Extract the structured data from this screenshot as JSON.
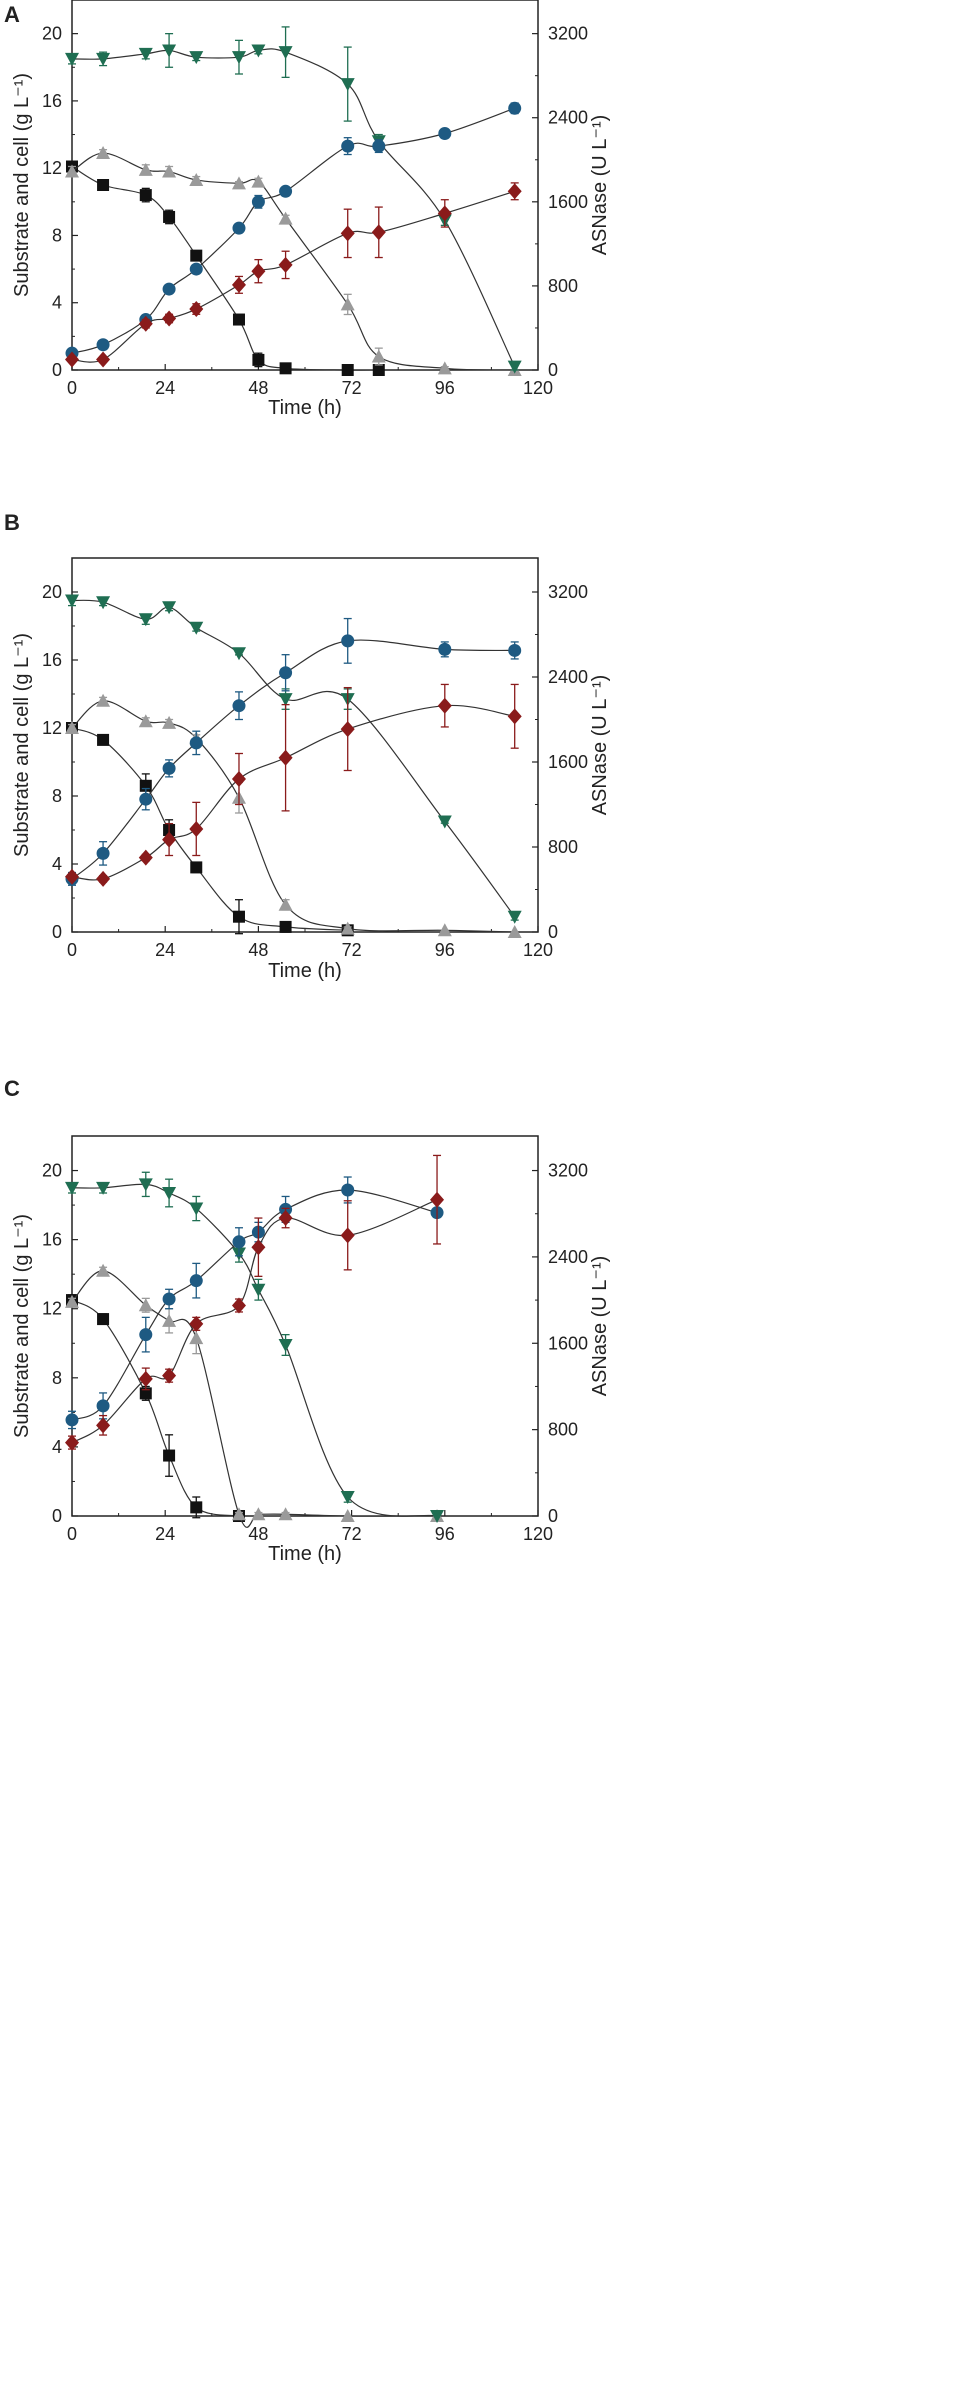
{
  "colors": {
    "black": "#111111",
    "gray": "#9a9a9a",
    "green": "#1f6e52",
    "blue": "#1e5a82",
    "red": "#8a1b1b",
    "axis": "#222222"
  },
  "chart_data": [
    {
      "type": "line",
      "panel_label": "A",
      "xlabel": "Time (h)",
      "ylabel": "Substrate and cell (g L⁻¹)",
      "y2label": "ASNase (U L⁻¹)",
      "xlim": [
        0,
        120
      ],
      "ylim": [
        0,
        22
      ],
      "y2lim": [
        0,
        3520
      ],
      "xticks": [
        "0",
        "24",
        "48",
        "72",
        "96",
        "120"
      ],
      "yticks": [
        "0",
        "4",
        "8",
        "12",
        "16",
        "20"
      ],
      "y2ticks": [
        "0",
        "800",
        "1600",
        "2400",
        "3200"
      ],
      "series": [
        {
          "name": "black-square",
          "marker": "square",
          "color": "#111111",
          "axis": "left",
          "x": [
            0,
            8,
            19,
            25,
            32,
            43,
            48,
            55,
            71,
            79
          ],
          "y": [
            12.1,
            11.0,
            10.4,
            9.1,
            6.8,
            3.0,
            0.6,
            0.1,
            0.0,
            0.0
          ],
          "err": [
            0.3,
            0.3,
            0.4,
            0.4,
            0.2,
            0.3,
            0.4,
            0.1,
            0.0,
            0.0
          ]
        },
        {
          "name": "gray-triangle",
          "marker": "triangle-up",
          "color": "#9a9a9a",
          "axis": "left",
          "x": [
            0,
            8,
            19,
            25,
            32,
            43,
            48,
            55,
            71,
            79,
            96,
            114
          ],
          "y": [
            11.8,
            12.9,
            11.9,
            11.8,
            11.3,
            11.1,
            11.2,
            9.0,
            3.9,
            0.8,
            0.1,
            0.0
          ],
          "err": [
            0.3,
            0.2,
            0.3,
            0.3,
            0.2,
            0.1,
            0.2,
            0.2,
            0.6,
            0.5,
            0.1,
            0.0
          ]
        },
        {
          "name": "green-triangle",
          "marker": "triangle-down",
          "color": "#1f6e52",
          "axis": "left",
          "x": [
            0,
            8,
            19,
            25,
            32,
            43,
            48,
            55,
            71,
            79,
            96,
            114
          ],
          "y": [
            18.5,
            18.5,
            18.8,
            19.0,
            18.6,
            18.6,
            19.0,
            18.9,
            17.0,
            13.6,
            8.9,
            0.2
          ],
          "err": [
            0.3,
            0.4,
            0.3,
            1.0,
            0.2,
            1.0,
            0.2,
            1.5,
            2.2,
            0.4,
            0.3,
            0.2
          ]
        },
        {
          "name": "blue-circle",
          "marker": "circle",
          "color": "#1e5a82",
          "axis": "right",
          "x": [
            0,
            8,
            19,
            25,
            32,
            43,
            48,
            55,
            71,
            79,
            96,
            114
          ],
          "y": [
            160,
            240,
            480,
            770,
            960,
            1350,
            1600,
            1700,
            2130,
            2130,
            2250,
            2490
          ],
          "err": [
            30,
            30,
            30,
            30,
            30,
            40,
            60,
            30,
            80,
            60,
            30,
            50
          ]
        },
        {
          "name": "red-diamond",
          "marker": "diamond",
          "color": "#8a1b1b",
          "axis": "right",
          "x": [
            0,
            8,
            19,
            25,
            32,
            43,
            48,
            55,
            71,
            79,
            96,
            114
          ],
          "y": [
            100,
            100,
            440,
            490,
            580,
            810,
            940,
            1000,
            1300,
            1310,
            1490,
            1700
          ],
          "err": [
            20,
            20,
            40,
            40,
            50,
            80,
            110,
            130,
            230,
            240,
            130,
            80
          ]
        }
      ]
    },
    {
      "type": "line",
      "panel_label": "B",
      "xlabel": "Time (h)",
      "ylabel": "Substrate and cell (g L⁻¹)",
      "y2label": "ASNase (U L⁻¹)",
      "xlim": [
        0,
        120
      ],
      "ylim": [
        0,
        22
      ],
      "y2lim": [
        0,
        3520
      ],
      "xticks": [
        "0",
        "24",
        "48",
        "72",
        "96",
        "120"
      ],
      "yticks": [
        "0",
        "4",
        "8",
        "12",
        "16",
        "20"
      ],
      "y2ticks": [
        "0",
        "800",
        "1600",
        "2400",
        "3200"
      ],
      "series": [
        {
          "name": "black-square",
          "marker": "square",
          "color": "#111111",
          "axis": "left",
          "x": [
            0,
            8,
            19,
            25,
            32,
            43,
            55,
            71
          ],
          "y": [
            12.0,
            11.3,
            8.6,
            6.0,
            3.8,
            0.9,
            0.3,
            0.1
          ],
          "err": [
            0.2,
            0.2,
            0.7,
            0.6,
            0.3,
            1.0,
            0.3,
            0.1
          ]
        },
        {
          "name": "gray-triangle",
          "marker": "triangle-up",
          "color": "#9a9a9a",
          "axis": "left",
          "x": [
            0,
            8,
            19,
            25,
            32,
            43,
            55,
            71,
            96,
            114
          ],
          "y": [
            12.0,
            13.6,
            12.4,
            12.3,
            11.4,
            7.9,
            1.6,
            0.2,
            0.1,
            0.0
          ],
          "err": [
            0.2,
            0.2,
            0.2,
            0.2,
            0.2,
            0.9,
            0.3,
            0.1,
            0.0,
            0.0
          ]
        },
        {
          "name": "green-triangle",
          "marker": "triangle-down",
          "color": "#1f6e52",
          "axis": "left",
          "x": [
            0,
            8,
            19,
            25,
            32,
            43,
            55,
            71,
            96,
            114
          ],
          "y": [
            19.5,
            19.4,
            18.4,
            19.1,
            17.9,
            16.4,
            13.7,
            13.7,
            6.5,
            0.9
          ],
          "err": [
            0.3,
            0.2,
            0.3,
            0.2,
            0.2,
            0.1,
            0.6,
            0.6,
            0.1,
            0.2
          ]
        },
        {
          "name": "blue-circle",
          "marker": "circle",
          "color": "#1e5a82",
          "axis": "right",
          "x": [
            0,
            8,
            19,
            25,
            32,
            43,
            55,
            71,
            96,
            114
          ],
          "y": [
            500,
            740,
            1250,
            1540,
            1780,
            2130,
            2440,
            2740,
            2660,
            2650
          ],
          "err": [
            60,
            110,
            100,
            80,
            110,
            130,
            170,
            210,
            70,
            80
          ]
        },
        {
          "name": "red-diamond",
          "marker": "diamond",
          "color": "#8a1b1b",
          "axis": "right",
          "x": [
            0,
            8,
            19,
            25,
            32,
            43,
            55,
            71,
            96,
            114
          ],
          "y": [
            520,
            500,
            700,
            870,
            970,
            1440,
            1640,
            1910,
            2130,
            2030
          ],
          "err": [
            30,
            30,
            30,
            150,
            250,
            240,
            500,
            390,
            200,
            300
          ]
        }
      ]
    },
    {
      "type": "line",
      "panel_label": "C",
      "xlabel": "Time (h)",
      "ylabel": "Substrate and cell (g L⁻¹)",
      "y2label": "ASNase (U L⁻¹)",
      "xlim": [
        0,
        120
      ],
      "ylim": [
        0,
        22
      ],
      "y2lim": [
        0,
        3520
      ],
      "xticks": [
        "0",
        "24",
        "48",
        "72",
        "96",
        "120"
      ],
      "yticks": [
        "0",
        "4",
        "8",
        "12",
        "16",
        "20"
      ],
      "y2ticks": [
        "0",
        "800",
        "1600",
        "2400",
        "3200"
      ],
      "series": [
        {
          "name": "black-square",
          "marker": "square",
          "color": "#111111",
          "axis": "left",
          "x": [
            0,
            8,
            19,
            25,
            32,
            43
          ],
          "y": [
            12.5,
            11.4,
            7.1,
            3.5,
            0.5,
            0.0
          ],
          "err": [
            0.3,
            0.3,
            0.4,
            1.2,
            0.6,
            0.0
          ]
        },
        {
          "name": "gray-triangle",
          "marker": "triangle-up",
          "color": "#9a9a9a",
          "axis": "left",
          "x": [
            0,
            8,
            19,
            25,
            32,
            43,
            48,
            55,
            71,
            94
          ],
          "y": [
            12.4,
            14.2,
            12.2,
            11.3,
            10.3,
            0.1,
            0.1,
            0.1,
            0.0,
            0.0
          ],
          "err": [
            0.2,
            0.2,
            0.4,
            0.7,
            0.9,
            0.1,
            0.1,
            0.1,
            0.0,
            0.0
          ]
        },
        {
          "name": "green-triangle",
          "marker": "triangle-down",
          "color": "#1f6e52",
          "axis": "left",
          "x": [
            0,
            8,
            19,
            25,
            32,
            43,
            48,
            55,
            71,
            94
          ],
          "y": [
            19.0,
            19.0,
            19.2,
            18.7,
            17.8,
            15.2,
            13.1,
            9.9,
            1.1,
            0.0
          ],
          "err": [
            0.3,
            0.3,
            0.7,
            0.8,
            0.7,
            0.5,
            0.6,
            0.6,
            0.3,
            0.0
          ]
        },
        {
          "name": "blue-circle",
          "marker": "circle",
          "color": "#1e5a82",
          "axis": "right",
          "x": [
            0,
            8,
            19,
            25,
            32,
            43,
            48,
            55,
            71,
            94
          ],
          "y": [
            890,
            1020,
            1680,
            2010,
            2180,
            2540,
            2630,
            2840,
            3020,
            2810
          ],
          "err": [
            80,
            120,
            160,
            90,
            160,
            130,
            90,
            120,
            120,
            40
          ]
        },
        {
          "name": "red-diamond",
          "marker": "diamond",
          "color": "#8a1b1b",
          "axis": "right",
          "x": [
            0,
            8,
            19,
            25,
            32,
            43,
            48,
            55,
            71,
            94
          ],
          "y": [
            680,
            840,
            1270,
            1300,
            1780,
            1950,
            2490,
            2760,
            2600,
            2930
          ],
          "err": [
            60,
            90,
            100,
            60,
            60,
            60,
            270,
            90,
            320,
            410
          ]
        }
      ]
    }
  ]
}
